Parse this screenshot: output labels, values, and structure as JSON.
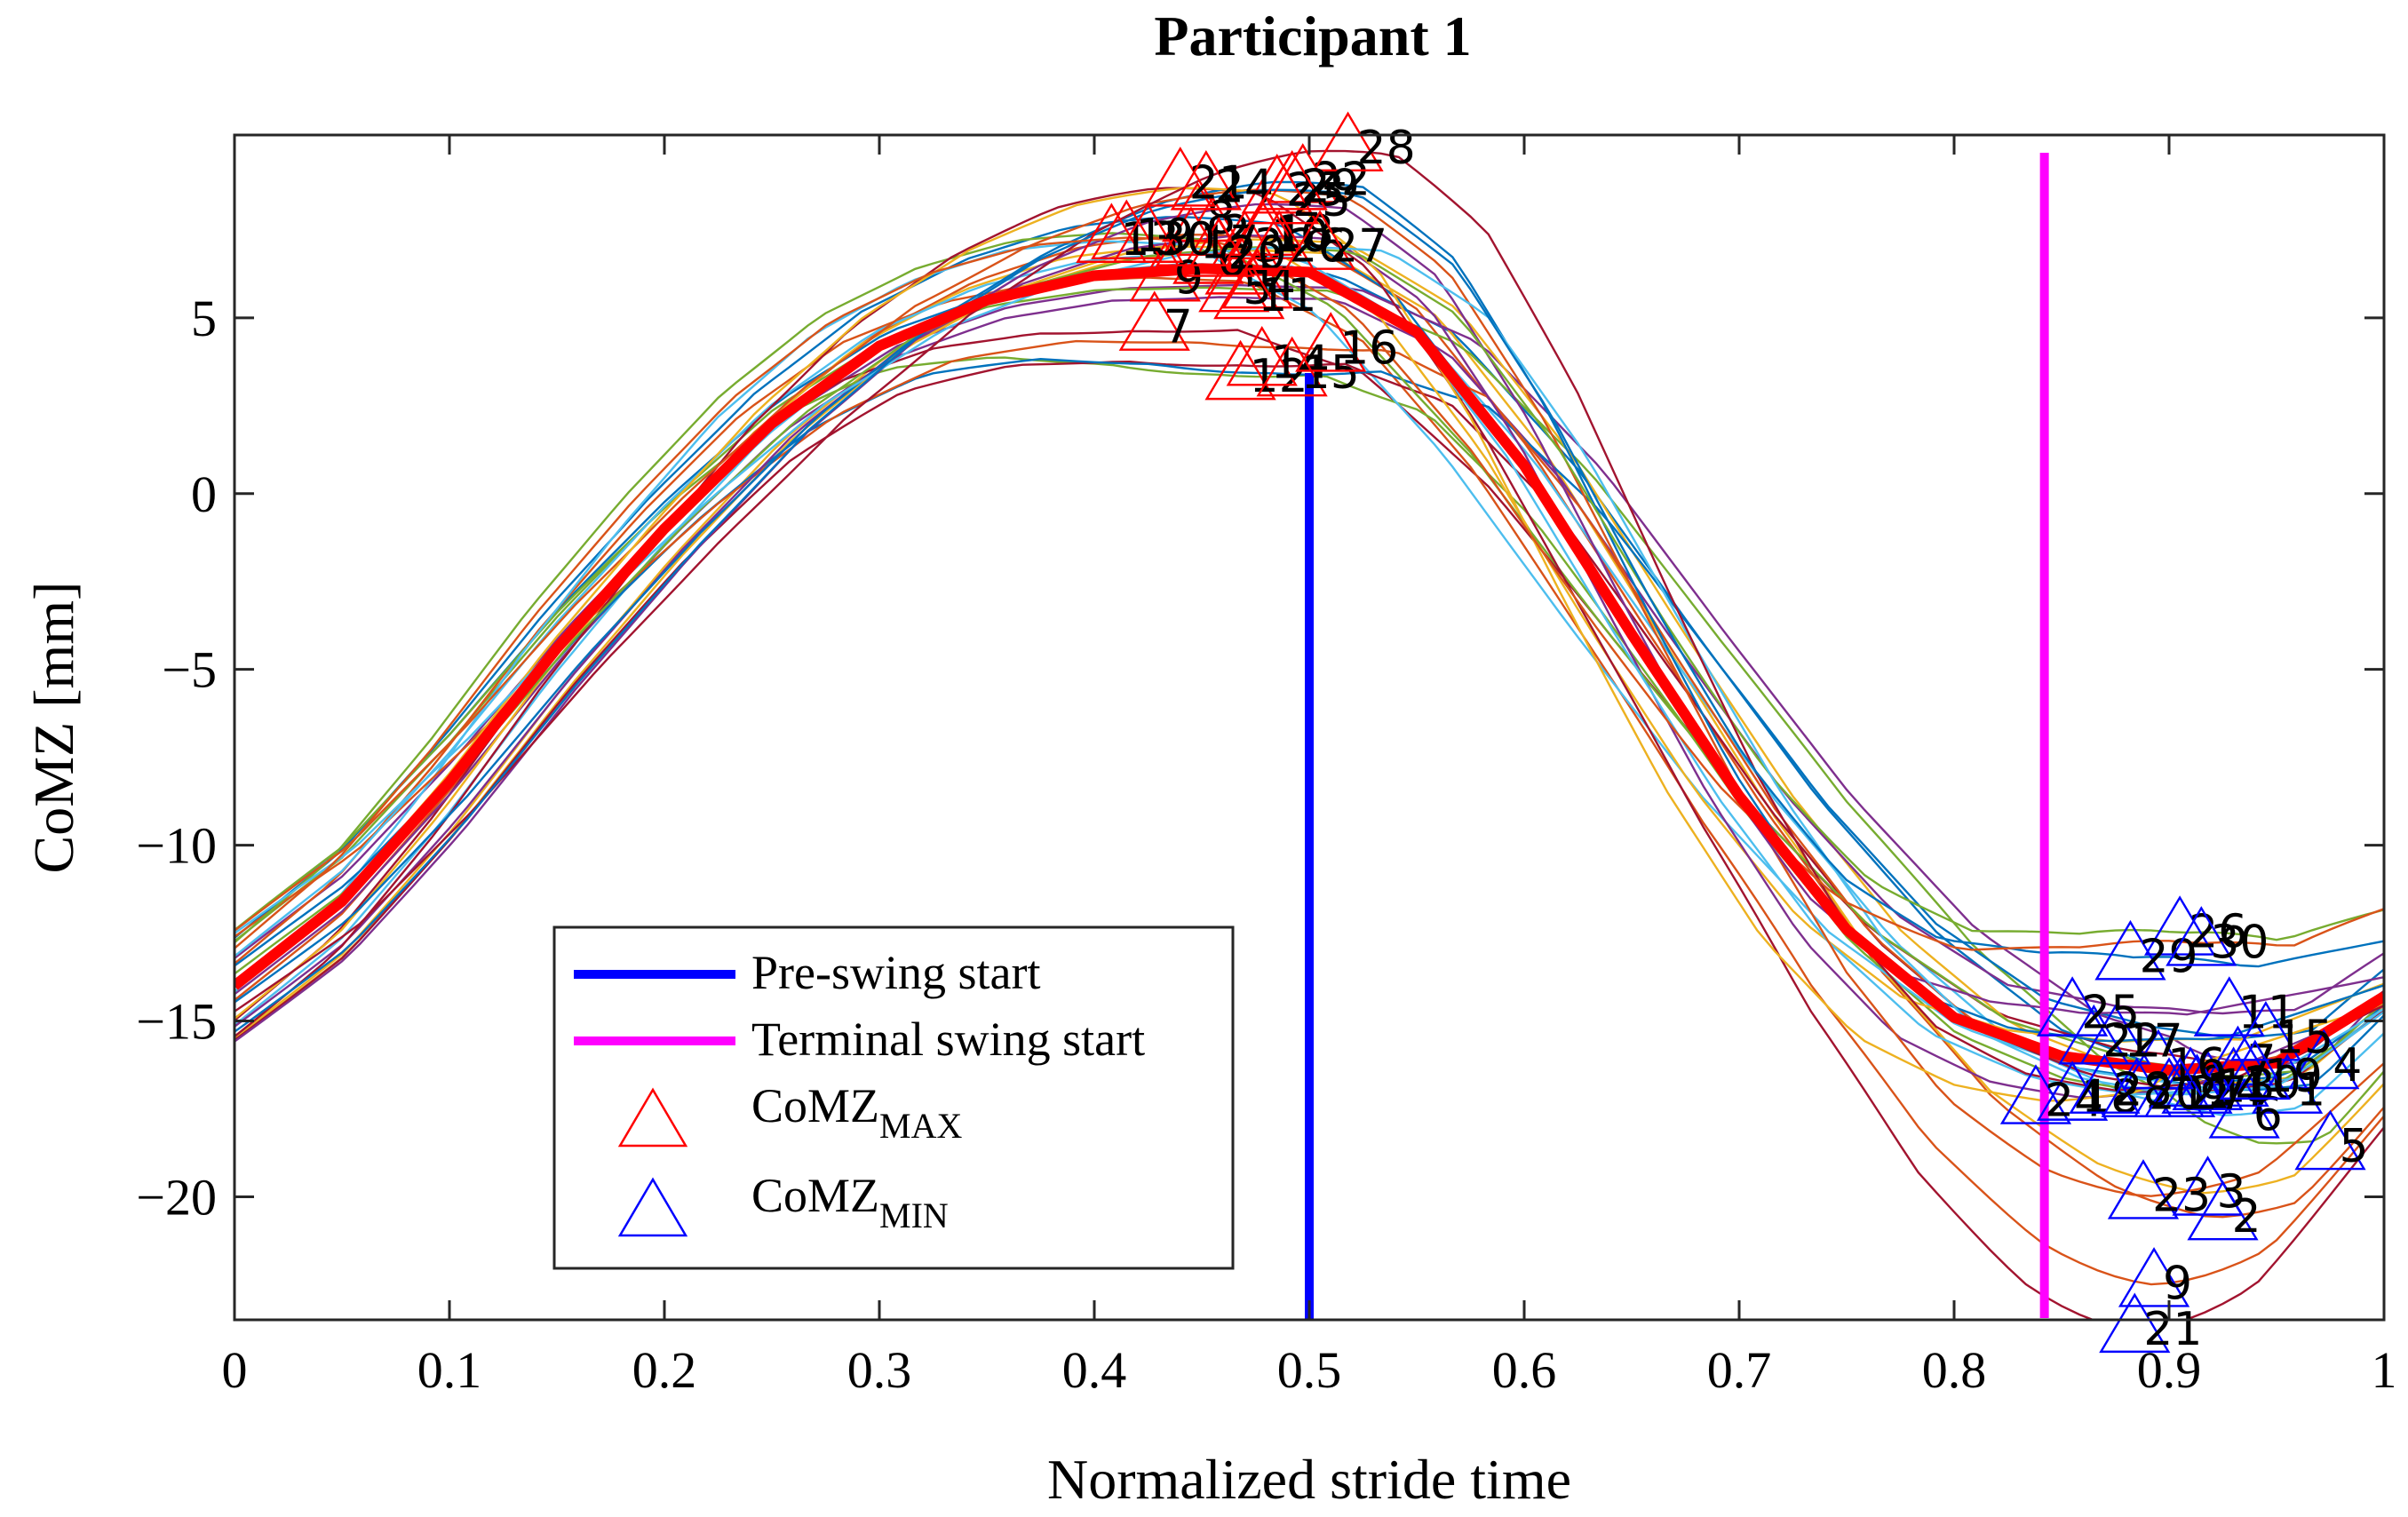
{
  "chart_data": {
    "type": "line",
    "title": "Participant 1",
    "xlabel": "Normalized stride time",
    "ylabel": "CoMZ [mm]",
    "xlim": [
      0,
      1
    ],
    "ylim": [
      -23.5,
      10.2
    ],
    "xticks": [
      0,
      0.1,
      0.2,
      0.3,
      0.4,
      0.5,
      0.6,
      0.7,
      0.8,
      0.9,
      1
    ],
    "xtick_labels": [
      "0",
      "0.1",
      "0.2",
      "0.3",
      "0.4",
      "0.5",
      "0.6",
      "0.7",
      "0.8",
      "0.9",
      "1"
    ],
    "yticks": [
      -20,
      -15,
      -10,
      -5,
      0,
      5
    ],
    "ytick_labels": [
      "−20",
      "−15",
      "−10",
      "−5",
      "0",
      "5"
    ],
    "grid": false,
    "legend_position": "lower-left",
    "legend": {
      "preswing": "Pre-swing start",
      "terminal": "Terminal swing start",
      "max_base": "CoMZ",
      "max_sub": "MAX",
      "min_base": "CoMZ",
      "min_sub": "MIN"
    },
    "vertical_lines": [
      {
        "name": "Pre-swing start",
        "x": 0.5,
        "color": "#0000ff"
      },
      {
        "name": "Terminal swing start",
        "x": 0.842,
        "color": "#ff00ff"
      }
    ],
    "mean_curve": {
      "name": "mean",
      "color": "#ff0000",
      "x": [
        0,
        0.05,
        0.1,
        0.15,
        0.2,
        0.25,
        0.3,
        0.35,
        0.4,
        0.45,
        0.5,
        0.55,
        0.6,
        0.65,
        0.7,
        0.75,
        0.8,
        0.85,
        0.9,
        0.95,
        1.0
      ],
      "y": [
        -14.0,
        -11.6,
        -8.2,
        -4.4,
        -1.0,
        2.0,
        4.2,
        5.5,
        6.2,
        6.4,
        6.3,
        4.6,
        0.8,
        -4.0,
        -8.6,
        -12.4,
        -14.9,
        -16.0,
        -16.4,
        -16.2,
        -14.3
      ]
    },
    "trial_colors": [
      "#0072BD",
      "#D95319",
      "#EDB120",
      "#7E2F8E",
      "#77AC30",
      "#4DBEEE",
      "#A2142F"
    ],
    "max_color": "#ff0000",
    "min_color": "#0000ff",
    "max_markers": [
      {
        "label": "1",
        "x": 0.468,
        "y": 6.3
      },
      {
        "label": "2",
        "x": 0.455,
        "y": 7.4
      },
      {
        "label": "3",
        "x": 0.47,
        "y": 7.0
      },
      {
        "label": "4",
        "x": 0.476,
        "y": 5.9
      },
      {
        "label": "5",
        "x": 0.465,
        "y": 5.8
      },
      {
        "label": "6",
        "x": 0.453,
        "y": 6.6
      },
      {
        "label": "7",
        "x": 0.428,
        "y": 4.7
      },
      {
        "label": "8",
        "x": 0.448,
        "y": 7.8
      },
      {
        "label": "9",
        "x": 0.433,
        "y": 6.1
      },
      {
        "label": "10",
        "x": 0.478,
        "y": 7.3
      },
      {
        "label": "11",
        "x": 0.472,
        "y": 5.6
      },
      {
        "label": "12",
        "x": 0.468,
        "y": 3.3
      },
      {
        "label": "13",
        "x": 0.408,
        "y": 7.2
      },
      {
        "label": "14",
        "x": 0.478,
        "y": 3.7
      },
      {
        "label": "15",
        "x": 0.492,
        "y": 3.4
      },
      {
        "label": "16",
        "x": 0.51,
        "y": 4.1
      },
      {
        "label": "17",
        "x": 0.445,
        "y": 7.1
      },
      {
        "label": "18",
        "x": 0.48,
        "y": 7.4
      },
      {
        "label": "19",
        "x": 0.415,
        "y": 7.3
      },
      {
        "label": "20",
        "x": 0.458,
        "y": 6.8
      },
      {
        "label": "21",
        "x": 0.44,
        "y": 8.8
      },
      {
        "label": "22",
        "x": 0.497,
        "y": 8.9
      },
      {
        "label": "23",
        "x": 0.485,
        "y": 8.6
      },
      {
        "label": "24",
        "x": 0.452,
        "y": 8.7
      },
      {
        "label": "25",
        "x": 0.488,
        "y": 8.3
      },
      {
        "label": "26",
        "x": 0.486,
        "y": 7.0
      },
      {
        "label": "27",
        "x": 0.505,
        "y": 7.0
      },
      {
        "label": "28",
        "x": 0.518,
        "y": 9.8
      },
      {
        "label": "29",
        "x": 0.492,
        "y": 8.7
      },
      {
        "label": "30",
        "x": 0.425,
        "y": 7.2
      }
    ],
    "min_markers": [
      {
        "label": "1",
        "x": 0.955,
        "y": -17.0
      },
      {
        "label": "2",
        "x": 0.925,
        "y": -20.6
      },
      {
        "label": "3",
        "x": 0.918,
        "y": -19.9
      },
      {
        "label": "4",
        "x": 0.972,
        "y": -16.3
      },
      {
        "label": "5",
        "x": 0.975,
        "y": -18.6
      },
      {
        "label": "6",
        "x": 0.935,
        "y": -17.7
      },
      {
        "label": "7",
        "x": 0.932,
        "y": -16.2
      },
      {
        "label": "8",
        "x": 0.91,
        "y": -16.8
      },
      {
        "label": "9",
        "x": 0.893,
        "y": -22.5
      },
      {
        "label": "10",
        "x": 0.93,
        "y": -16.8
      },
      {
        "label": "11",
        "x": 0.928,
        "y": -14.8
      },
      {
        "label": "12",
        "x": 0.9,
        "y": -17.1
      },
      {
        "label": "13",
        "x": 0.918,
        "y": -16.9
      },
      {
        "label": "14",
        "x": 0.913,
        "y": -17.0
      },
      {
        "label": "15",
        "x": 0.945,
        "y": -15.5
      },
      {
        "label": "16",
        "x": 0.895,
        "y": -16.3
      },
      {
        "label": "17",
        "x": 0.875,
        "y": -15.6
      },
      {
        "label": "18",
        "x": 0.855,
        "y": -17.2
      },
      {
        "label": "19",
        "x": 0.94,
        "y": -16.6
      },
      {
        "label": "20",
        "x": 0.885,
        "y": -17.1
      },
      {
        "label": "21",
        "x": 0.884,
        "y": -23.8
      },
      {
        "label": "22",
        "x": 0.865,
        "y": -15.6
      },
      {
        "label": "23",
        "x": 0.888,
        "y": -20.0
      },
      {
        "label": "24",
        "x": 0.838,
        "y": -17.3
      },
      {
        "label": "25",
        "x": 0.855,
        "y": -14.8
      },
      {
        "label": "26",
        "x": 0.905,
        "y": -12.5
      },
      {
        "label": "27",
        "x": 0.905,
        "y": -17.1
      },
      {
        "label": "28",
        "x": 0.87,
        "y": -17.0
      },
      {
        "label": "29",
        "x": 0.882,
        "y": -13.2
      },
      {
        "label": "30",
        "x": 0.915,
        "y": -12.8
      }
    ]
  }
}
